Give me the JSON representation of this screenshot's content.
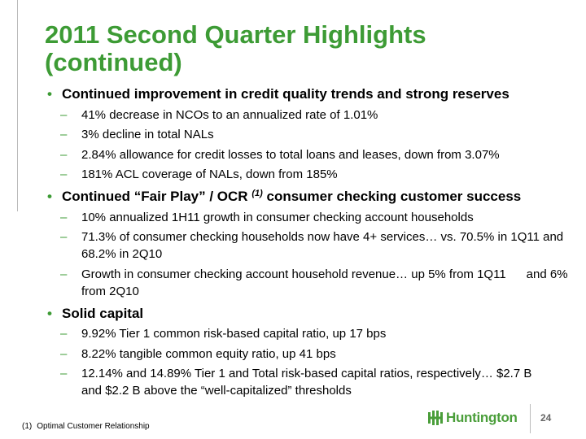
{
  "title": "2011 Second Quarter Highlights (continued)",
  "sections": [
    {
      "heading": [
        "Continued improvement in credit quality trends and strong reserves"
      ],
      "items": [
        "41% decrease in NCOs to an annualized rate of 1.01%",
        "3% decline in total NALs",
        "2.84% allowance for credit losses to total loans and leases, down from 3.07%",
        "181% ACL coverage of NALs, down from 185%"
      ]
    },
    {
      "heading": [
        "Continued “Fair Play” / OCR ",
        "(1)",
        " consumer checking customer success"
      ],
      "items": [
        "10% annualized 1H11 growth in consumer checking account households",
        "71.3% of consumer checking households now have 4+ services… vs. 70.5% in 1Q11 and 68.2% in 2Q10",
        "Growth in consumer checking account household revenue… up 5% from 1Q11      and 6% from 2Q10"
      ]
    },
    {
      "heading": [
        "Solid capital"
      ],
      "items": [
        "9.92% Tier 1 common risk-based capital ratio, up 17 bps",
        "8.22% tangible common equity ratio, up 41 bps",
        "12.14% and 14.89% Tier 1 and Total risk-based capital ratios, respectively… $2.7 B and $2.2 B above the “well-capitalized” thresholds"
      ]
    }
  ],
  "footnote": {
    "marker": "(1)",
    "text": "Optimal Customer Relationship"
  },
  "logo": "Huntington",
  "page_number": "24"
}
